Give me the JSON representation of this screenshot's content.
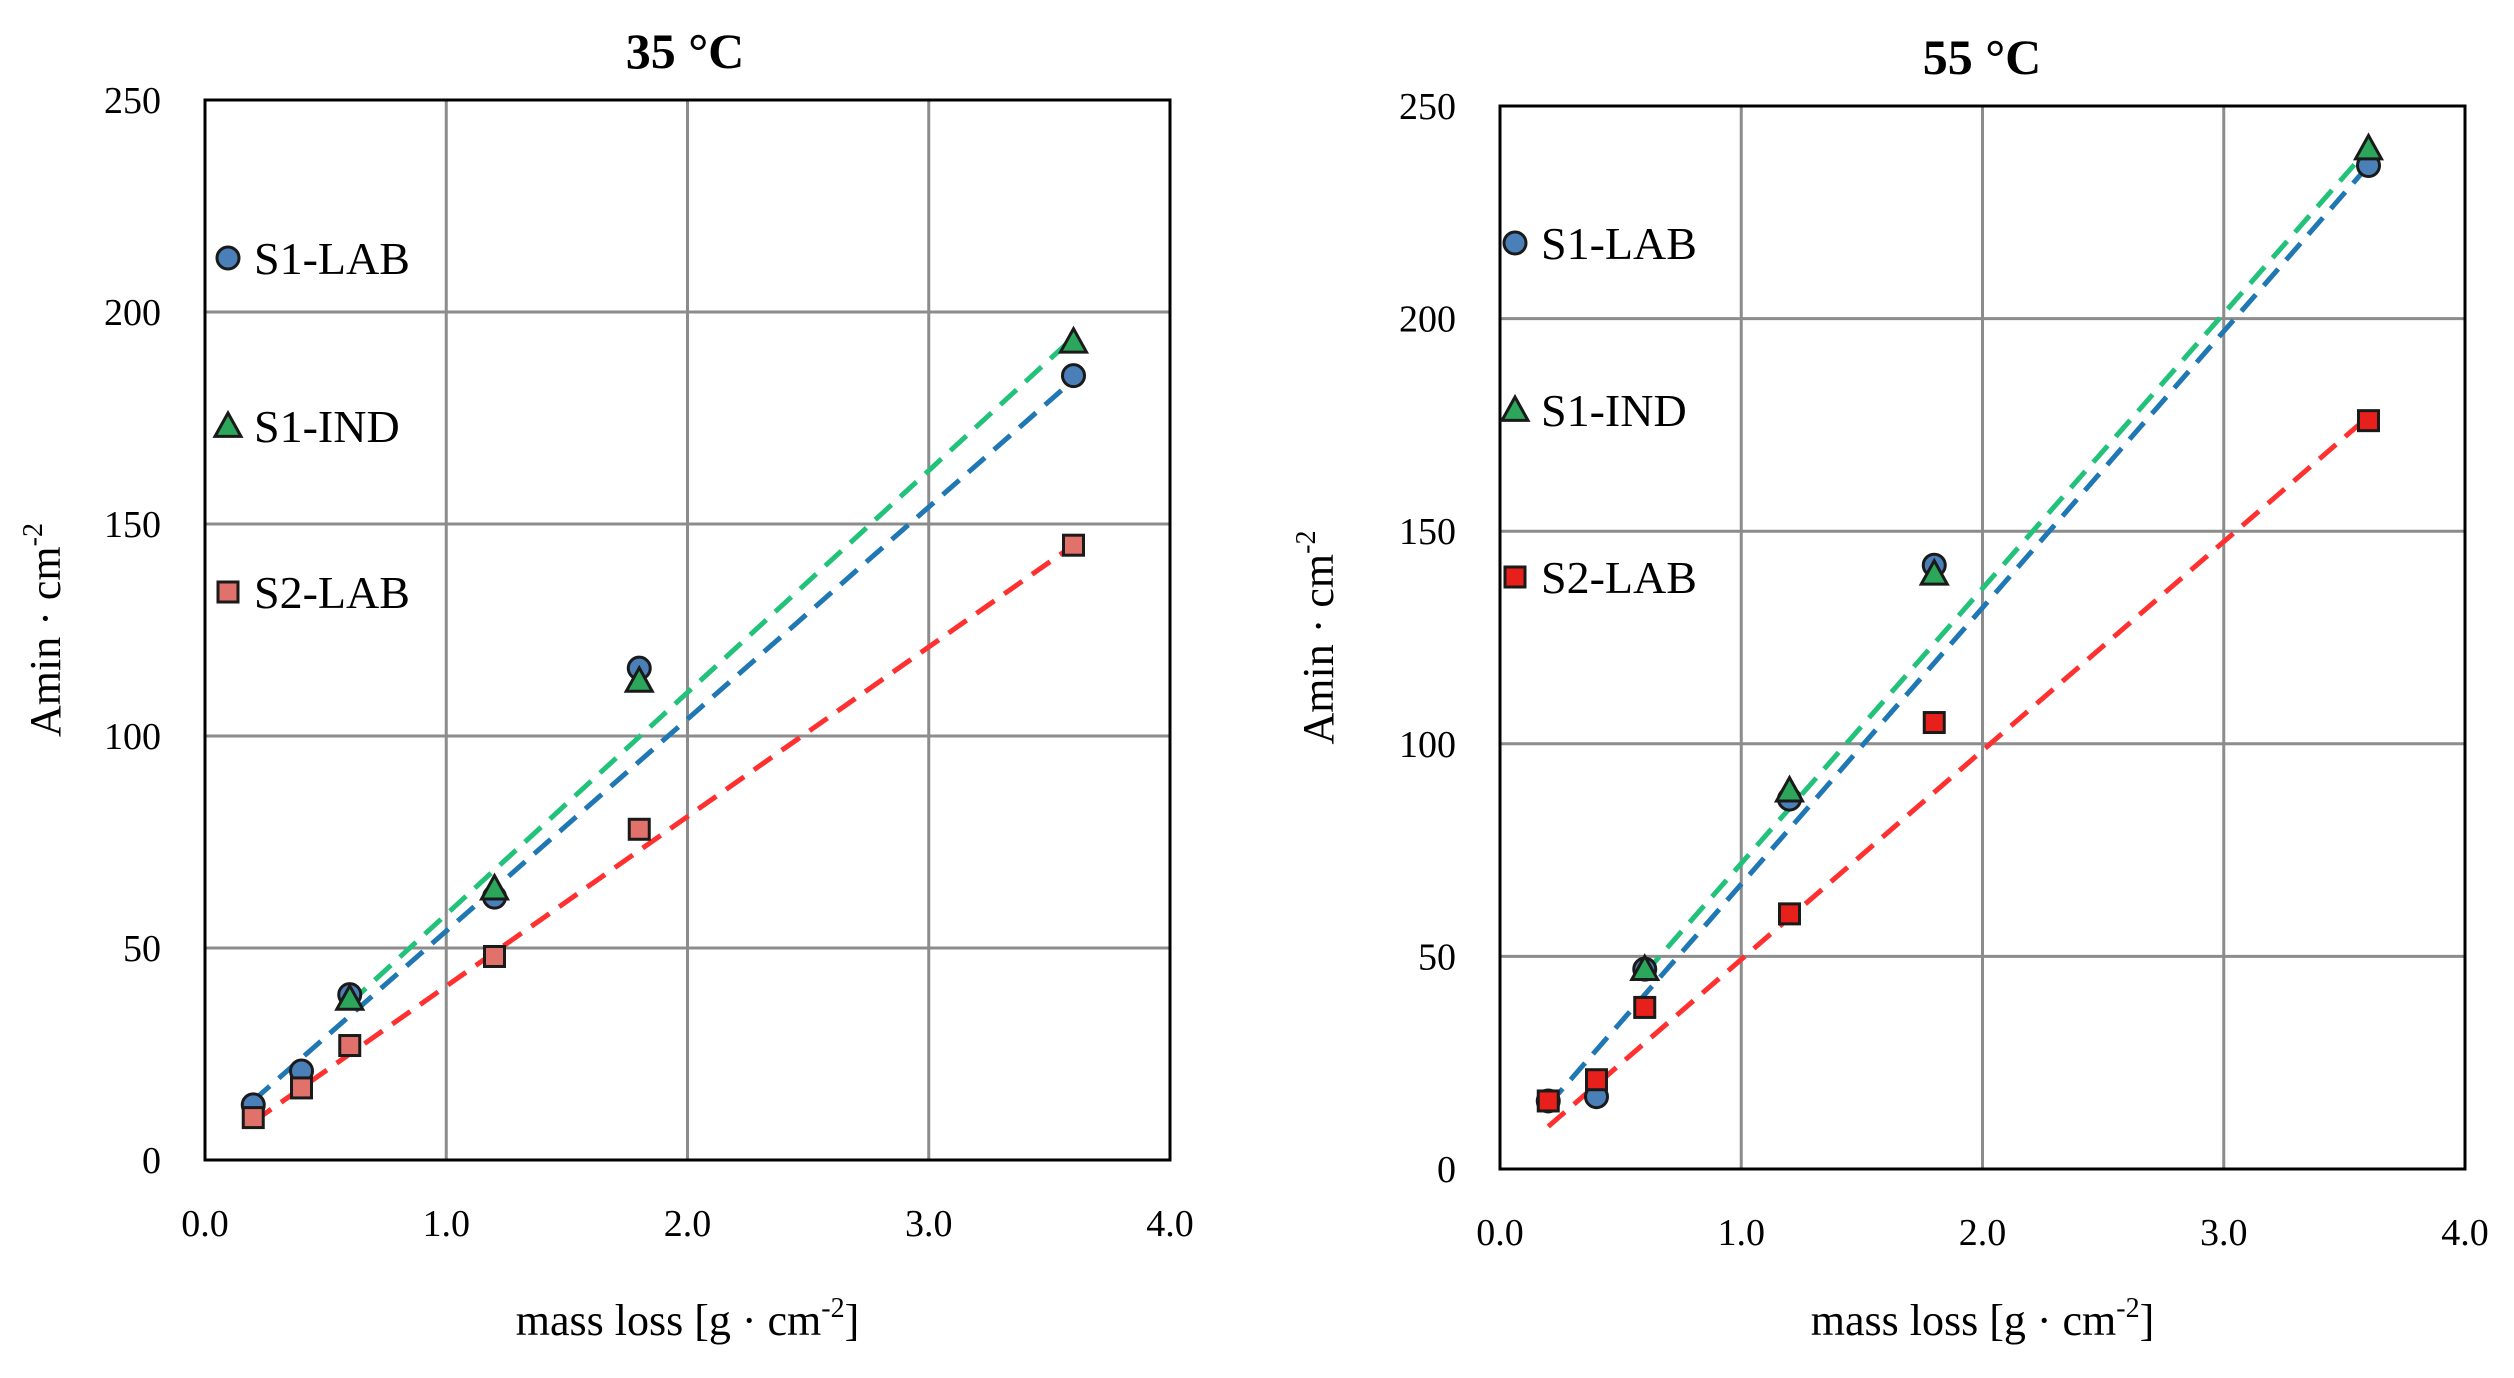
{
  "chart_data": [
    {
      "type": "scatter",
      "title": "35 °C",
      "xlabel_main": "mass loss [g · cm",
      "xlabel_sup": "-2",
      "xlabel_end": "]",
      "ylabel_main": "Amin · cm",
      "ylabel_sup": "-2",
      "xlim": [
        0,
        4
      ],
      "ylim": [
        0,
        250
      ],
      "x_ticks": [
        0,
        1,
        2,
        3,
        4
      ],
      "x_tick_labels": [
        "0.0",
        "1.0",
        "2.0",
        "3.0",
        "4.0"
      ],
      "y_ticks": [
        0,
        50,
        100,
        150,
        200,
        250
      ],
      "y_tick_labels": [
        "0",
        "50",
        "100",
        "150",
        "200",
        "250"
      ],
      "grid": true,
      "legend_position": "left",
      "series": [
        {
          "name": "S1-LAB",
          "marker": "circle",
          "color": "#4a7fb8",
          "trend_color": "#1f77b4",
          "x": [
            0.2,
            0.4,
            0.6,
            1.2,
            1.8,
            3.6
          ],
          "y": [
            13,
            21,
            39,
            62,
            116,
            185
          ],
          "trend_x": [
            0.2,
            3.6
          ],
          "trend_y": [
            14,
            184
          ]
        },
        {
          "name": "S1-IND",
          "marker": "triangle",
          "color": "#2ca65a",
          "trend_color": "#22c27a",
          "x": [
            0.6,
            1.2,
            1.8,
            3.6
          ],
          "y": [
            38,
            64,
            113,
            193
          ],
          "trend_x": [
            0.6,
            3.6
          ],
          "trend_y": [
            37,
            194
          ]
        },
        {
          "name": "S2-LAB",
          "marker": "square",
          "color": "#e0726b",
          "trend_color": "#ff3030",
          "x": [
            0.2,
            0.4,
            0.6,
            1.2,
            1.8,
            3.6
          ],
          "y": [
            10,
            17,
            27,
            48,
            78,
            145
          ],
          "trend_x": [
            0.2,
            3.6
          ],
          "trend_y": [
            9,
            145
          ]
        }
      ]
    },
    {
      "type": "scatter",
      "title": "55 °C",
      "xlabel_main": "mass loss [g · cm",
      "xlabel_sup": "-2",
      "xlabel_end": "]",
      "ylabel_main": "Amin · cm",
      "ylabel_sup": "-2",
      "xlim": [
        0,
        4
      ],
      "ylim": [
        0,
        250
      ],
      "x_ticks": [
        0,
        1,
        2,
        3,
        4
      ],
      "x_tick_labels": [
        "0.0",
        "1.0",
        "2.0",
        "3.0",
        "4.0"
      ],
      "y_ticks": [
        0,
        50,
        100,
        150,
        200,
        250
      ],
      "y_tick_labels": [
        "0",
        "50",
        "100",
        "150",
        "200",
        "250"
      ],
      "grid": true,
      "legend_position": "left",
      "series": [
        {
          "name": "S1-LAB",
          "marker": "circle",
          "color": "#4a7fb8",
          "trend_color": "#1f77b4",
          "x": [
            0.2,
            0.4,
            0.6,
            1.2,
            1.8,
            3.6
          ],
          "y": [
            16,
            17,
            47,
            87,
            142,
            236
          ],
          "trend_x": [
            0.2,
            3.6
          ],
          "trend_y": [
            15,
            236
          ]
        },
        {
          "name": "S1-IND",
          "marker": "triangle",
          "color": "#2ca65a",
          "trend_color": "#22c27a",
          "x": [
            0.6,
            1.2,
            1.8,
            3.6
          ],
          "y": [
            47,
            89,
            140,
            240
          ],
          "trend_x": [
            0.6,
            3.6
          ],
          "trend_y": [
            46,
            240
          ]
        },
        {
          "name": "S2-LAB",
          "marker": "square",
          "color": "#e8201c",
          "trend_color": "#ff3030",
          "x": [
            0.2,
            0.4,
            0.6,
            1.2,
            1.8,
            3.6
          ],
          "y": [
            16,
            21,
            38,
            60,
            105,
            176
          ],
          "trend_x": [
            0.2,
            3.6
          ],
          "trend_y": [
            10,
            177
          ]
        }
      ]
    }
  ]
}
